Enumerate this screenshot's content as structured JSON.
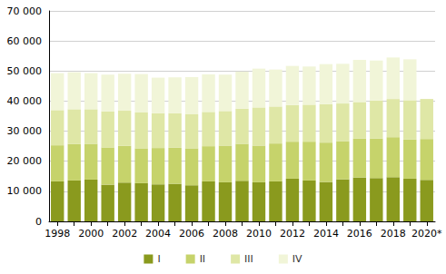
{
  "chart_data": {
    "type": "bar",
    "stacked": true,
    "grid": true,
    "legend": "bottom",
    "categories": [
      "1998",
      null,
      "2000",
      null,
      "2002",
      null,
      "2004",
      null,
      "2006",
      null,
      "2008",
      null,
      "2010",
      null,
      "2012",
      null,
      "2014",
      null,
      "2016",
      null,
      "2018",
      null,
      "2020*"
    ],
    "series": [
      {
        "name": "I",
        "color": "#8a9a1e",
        "values": [
          13300,
          13600,
          13900,
          12200,
          12900,
          12700,
          12300,
          12500,
          12000,
          13300,
          13000,
          13500,
          13000,
          13300,
          14200,
          13600,
          13100,
          14000,
          14600,
          14400,
          14700,
          14200,
          13800
        ]
      },
      {
        "name": "II",
        "color": "#c6d36b",
        "values": [
          12000,
          12100,
          11900,
          12400,
          12200,
          11600,
          12100,
          12000,
          12300,
          11700,
          12200,
          12300,
          12200,
          12600,
          12300,
          12900,
          13100,
          12700,
          12900,
          13100,
          13300,
          13000,
          13600
        ]
      },
      {
        "name": "III",
        "color": "#dfe7a6",
        "values": [
          11700,
          11600,
          11500,
          12000,
          11700,
          11900,
          11600,
          11500,
          11300,
          11400,
          11500,
          11700,
          12700,
          12300,
          12200,
          12300,
          12800,
          12500,
          12200,
          12700,
          12700,
          13100,
          13300
        ]
      },
      {
        "name": "IV",
        "color": "#f1f5d8",
        "values": [
          12300,
          12300,
          12000,
          12200,
          12300,
          12800,
          11800,
          11900,
          12400,
          12500,
          12100,
          12300,
          12900,
          12300,
          13000,
          12700,
          13300,
          13200,
          14000,
          13300,
          13800,
          13600,
          null
        ]
      }
    ],
    "ylim": [
      0,
      70000
    ],
    "yticks": [
      0,
      {
        "value": 10000,
        "label": "10 000"
      },
      {
        "value": 20000,
        "label": "20 000"
      },
      {
        "value": 30000,
        "label": "30 000"
      },
      {
        "value": 40000,
        "label": "40 000"
      },
      {
        "value": 50000,
        "label": "50 000"
      },
      {
        "value": 60000,
        "label": "60 000"
      },
      {
        "value": 70000,
        "label": "70 000"
      }
    ]
  }
}
